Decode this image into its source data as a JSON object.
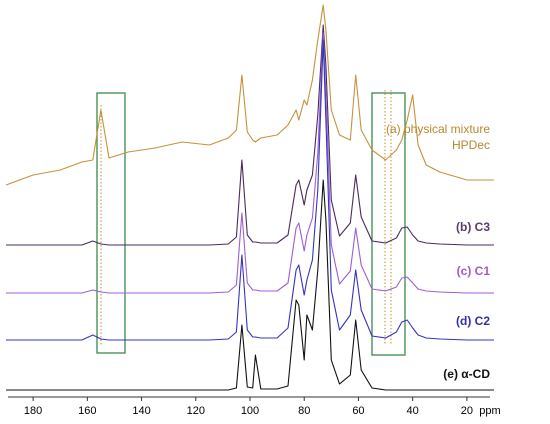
{
  "chart_data": {
    "type": "line",
    "x_label": "ppm",
    "xlim": [
      190,
      10
    ],
    "xticks": [
      180,
      160,
      140,
      120,
      100,
      80,
      60,
      40,
      20
    ],
    "x": [
      190,
      180,
      170,
      162,
      158,
      155,
      152,
      145,
      135,
      125,
      115,
      108,
      105,
      103,
      101,
      99,
      98,
      96,
      90,
      86,
      83,
      82,
      80,
      79,
      77,
      75,
      73,
      72,
      70,
      67,
      63,
      61,
      59,
      55,
      50,
      46,
      44,
      42,
      40,
      38,
      35,
      30,
      20,
      10
    ],
    "series": [
      {
        "label_lines": [
          "(a) physical mixture",
          "HPDec"
        ],
        "color": "#c8913a",
        "label_color": "#b8862e",
        "values": [
          -5,
          5,
          10,
          18,
          20,
          70,
          22,
          28,
          32,
          38,
          35,
          42,
          50,
          105,
          48,
          40,
          38,
          42,
          45,
          55,
          70,
          60,
          80,
          75,
          100,
          140,
          175,
          150,
          70,
          45,
          40,
          105,
          50,
          30,
          20,
          30,
          40,
          60,
          85,
          35,
          15,
          8,
          0,
          0
        ]
      },
      {
        "label_lines": [
          "(b) C3"
        ],
        "color": "#4b2a5e",
        "label_color": "#5b3a6e",
        "values": [
          0,
          0,
          0,
          0,
          4,
          1,
          0,
          0,
          0,
          0,
          0,
          1,
          8,
          85,
          10,
          3,
          3,
          2,
          2,
          10,
          60,
          65,
          40,
          55,
          70,
          130,
          220,
          180,
          45,
          9,
          22,
          70,
          28,
          4,
          2,
          7,
          17,
          18,
          10,
          4,
          2,
          1,
          0,
          0
        ]
      },
      {
        "label_lines": [
          "(c) C1"
        ],
        "color": "#9b5fd6",
        "label_color": "#a05ad0",
        "values": [
          0,
          0,
          0,
          0,
          3,
          1,
          0,
          0,
          0,
          0,
          0,
          1,
          8,
          80,
          10,
          3,
          3,
          2,
          2,
          10,
          65,
          70,
          42,
          58,
          75,
          140,
          260,
          200,
          48,
          9,
          22,
          65,
          28,
          4,
          2,
          6,
          15,
          16,
          10,
          4,
          2,
          1,
          0,
          0
        ]
      },
      {
        "label_lines": [
          "(d) C2"
        ],
        "color": "#3434c0",
        "label_color": "#3030b0",
        "values": [
          0,
          0,
          0,
          0,
          5,
          1,
          0,
          0,
          0,
          0,
          0,
          1,
          8,
          85,
          10,
          3,
          3,
          2,
          2,
          12,
          70,
          75,
          45,
          60,
          80,
          150,
          300,
          220,
          50,
          10,
          25,
          70,
          30,
          4,
          2,
          8,
          18,
          20,
          12,
          5,
          2,
          1,
          0,
          0
        ]
      },
      {
        "label_lines": [
          "(e) α-CD"
        ],
        "color": "#111111",
        "label_color": "#111111",
        "values": [
          0,
          0,
          0,
          0,
          0,
          0,
          0,
          0,
          0,
          0,
          0,
          0,
          2,
          65,
          3,
          2,
          35,
          1,
          1,
          4,
          90,
          85,
          30,
          75,
          60,
          120,
          210,
          170,
          30,
          6,
          15,
          70,
          20,
          2,
          0,
          0,
          0,
          0,
          0,
          0,
          0,
          0,
          0,
          0
        ]
      }
    ]
  }
}
